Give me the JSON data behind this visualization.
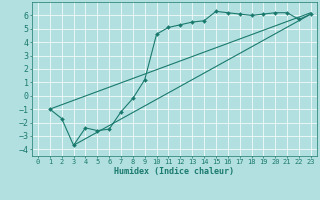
{
  "xlabel": "Humidex (Indice chaleur)",
  "bg_color": "#b2e0e0",
  "grid_color": "#ffffff",
  "line_color": "#1a7a6e",
  "xlim": [
    -0.5,
    23.5
  ],
  "ylim": [
    -4.5,
    7.0
  ],
  "xticks": [
    0,
    1,
    2,
    3,
    4,
    5,
    6,
    7,
    8,
    9,
    10,
    11,
    12,
    13,
    14,
    15,
    16,
    17,
    18,
    19,
    20,
    21,
    22,
    23
  ],
  "yticks": [
    -4,
    -3,
    -2,
    -1,
    0,
    1,
    2,
    3,
    4,
    5,
    6
  ],
  "line1_x": [
    1,
    2,
    3,
    4,
    5,
    6,
    7,
    8,
    9,
    10,
    11,
    12,
    13,
    14,
    15,
    16,
    17,
    18,
    19,
    20,
    21,
    22,
    23
  ],
  "line1_y": [
    -1,
    -1.7,
    -3.7,
    -2.4,
    -2.6,
    -2.5,
    -1.2,
    -0.2,
    1.2,
    4.6,
    5.1,
    5.3,
    5.5,
    5.6,
    6.3,
    6.2,
    6.1,
    6.0,
    6.1,
    6.2,
    6.2,
    5.7,
    6.1
  ],
  "line2_x": [
    1,
    23
  ],
  "line2_y": [
    -1.0,
    6.2
  ],
  "line3_x": [
    3,
    23
  ],
  "line3_y": [
    -3.7,
    6.1
  ],
  "xlabel_fontsize": 6.0,
  "tick_fontsize_x": 5.0,
  "tick_fontsize_y": 6.0
}
